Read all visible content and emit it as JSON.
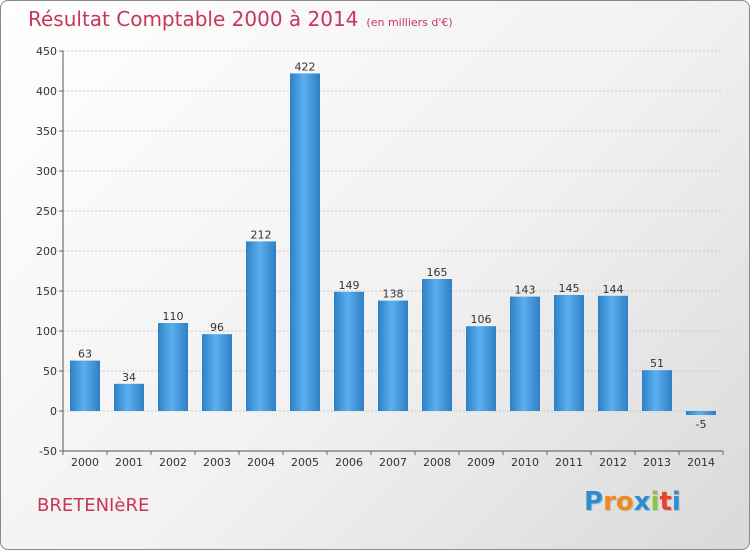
{
  "chart_data": {
    "type": "bar",
    "title": "Résultat Comptable 2000 à 2014",
    "unit": "(en milliers d'€)",
    "categories": [
      "2000",
      "2001",
      "2002",
      "2003",
      "2004",
      "2005",
      "2006",
      "2007",
      "2008",
      "2009",
      "2010",
      "2011",
      "2012",
      "2013",
      "2014"
    ],
    "values": [
      63,
      34,
      110,
      96,
      212,
      422,
      149,
      138,
      165,
      106,
      143,
      145,
      144,
      51,
      -5
    ],
    "ylim": [
      -50,
      450
    ],
    "yticks": [
      -50,
      0,
      50,
      100,
      150,
      200,
      250,
      300,
      350,
      400,
      450
    ],
    "grid": true,
    "bar_color": "#3d8fd6"
  },
  "city": "BRETENIèRE",
  "logo": {
    "letters": [
      "P",
      "r",
      "o",
      "x",
      "i",
      "t",
      "i"
    ],
    "colors": [
      "#2a8fd0",
      "#f08a1c",
      "#f08a1c",
      "#2a8fd0",
      "#8cc63f",
      "#e8412c",
      "#2a8fd0"
    ]
  }
}
